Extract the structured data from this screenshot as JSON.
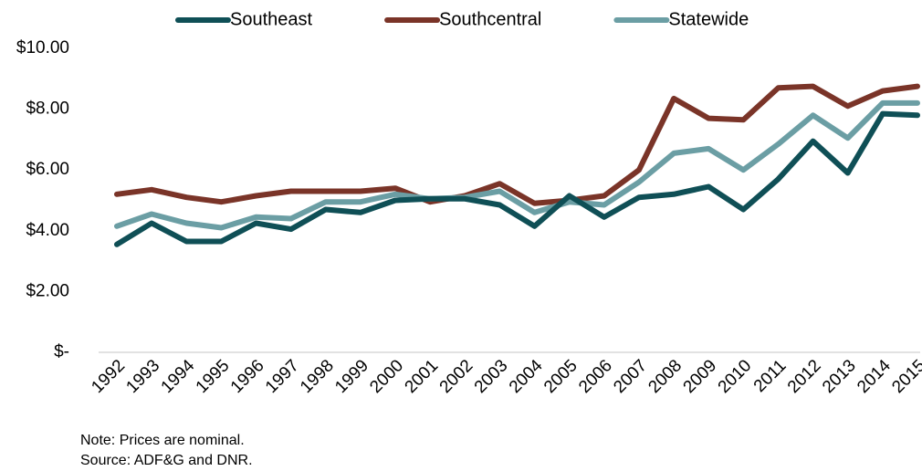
{
  "chart_data": {
    "type": "line",
    "categories": [
      "1992",
      "1993",
      "1994",
      "1995",
      "1996",
      "1997",
      "1998",
      "1999",
      "2000",
      "2001",
      "2002",
      "2003",
      "2004",
      "2005",
      "2006",
      "2007",
      "2008",
      "2009",
      "2010",
      "2011",
      "2012",
      "2013",
      "2014",
      "2015"
    ],
    "series": [
      {
        "name": "Southeast",
        "color": "#0f4f56",
        "values": [
          3.55,
          4.25,
          3.65,
          3.65,
          4.25,
          4.05,
          4.7,
          4.6,
          5.0,
          5.05,
          5.05,
          4.85,
          4.15,
          5.15,
          4.45,
          5.1,
          5.2,
          5.45,
          4.7,
          5.7,
          6.95,
          5.9,
          7.85,
          7.8
        ]
      },
      {
        "name": "Southcentral",
        "color": "#7a3428",
        "values": [
          5.2,
          5.35,
          5.1,
          4.95,
          5.15,
          5.3,
          5.3,
          5.3,
          5.4,
          4.95,
          5.15,
          5.55,
          4.9,
          5.0,
          5.15,
          6.0,
          8.35,
          7.7,
          7.65,
          8.7,
          8.75,
          8.1,
          8.6,
          8.75
        ]
      },
      {
        "name": "Statewide",
        "color": "#6b9ea4",
        "values": [
          4.15,
          4.55,
          4.25,
          4.1,
          4.45,
          4.4,
          4.95,
          4.95,
          5.2,
          5.05,
          5.1,
          5.3,
          4.6,
          4.95,
          4.85,
          5.6,
          6.55,
          6.7,
          6.0,
          6.85,
          7.8,
          7.05,
          8.2,
          8.2
        ]
      }
    ],
    "ylim": [
      0,
      10
    ],
    "yticks": [
      {
        "value": 0,
        "label": "$-"
      },
      {
        "value": 2,
        "label": "$2.00"
      },
      {
        "value": 4,
        "label": "$4.00"
      },
      {
        "value": 6,
        "label": "$6.00"
      },
      {
        "value": 8,
        "label": "$8.00"
      },
      {
        "value": 10,
        "label": "$10.00"
      }
    ],
    "grid": false,
    "legend": "top",
    "notes": [
      "Note: Prices are nominal.",
      "Source: ADF&G  and DNR."
    ]
  }
}
